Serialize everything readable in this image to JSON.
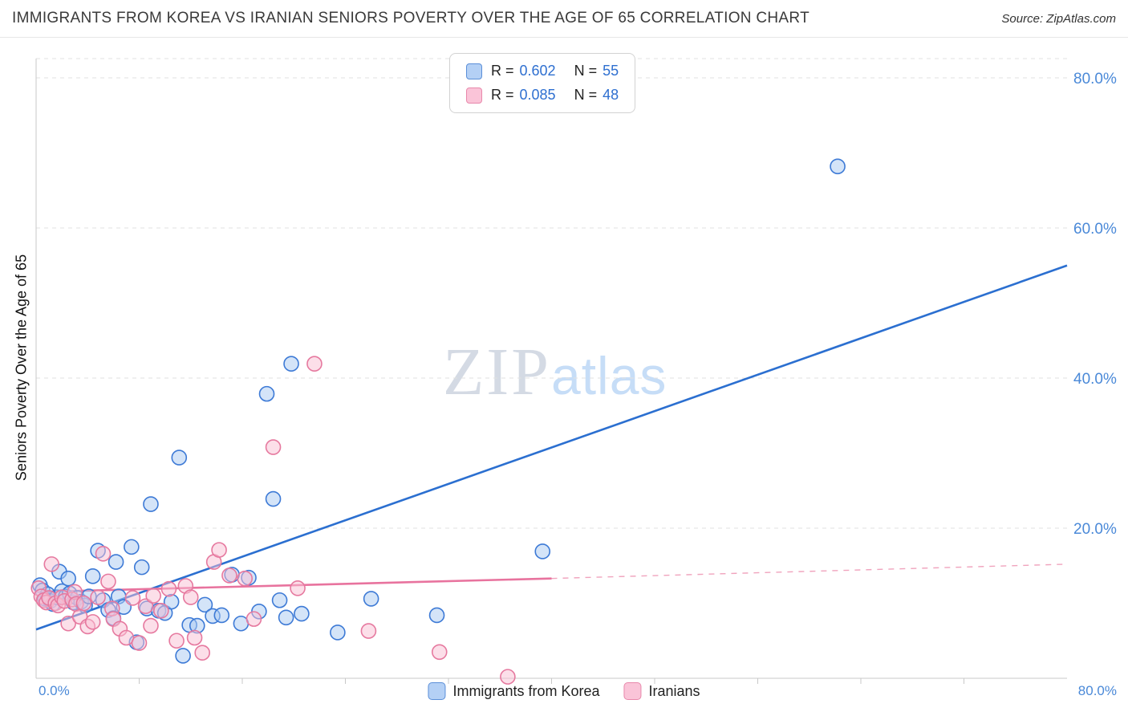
{
  "header": {
    "title": "IMMIGRANTS FROM KOREA VS IRANIAN SENIORS POVERTY OVER THE AGE OF 65 CORRELATION CHART",
    "source_prefix": "Source:",
    "source": "ZipAtlas.com"
  },
  "watermark": {
    "part1": "ZIP",
    "part2": "atlas"
  },
  "axes": {
    "y_title": "Seniors Poverty Over the Age of 65",
    "x_min_label": "0.0%",
    "x_max_label": "80.0%"
  },
  "stats_legend": {
    "rows": [
      {
        "series": "korea",
        "r_label": "R =",
        "r_value": "0.602",
        "n_label": "N =",
        "n_value": "55"
      },
      {
        "series": "iranians",
        "r_label": "R =",
        "r_value": "0.085",
        "n_label": "N =",
        "n_value": "48"
      }
    ]
  },
  "bottom_legend": [
    {
      "label": "Immigrants from Korea"
    },
    {
      "label": "Iranians"
    }
  ],
  "chart_data": {
    "type": "scatter",
    "title": "Immigrants from Korea vs Iranian Seniors Poverty Over the Age of 65",
    "xlabel": "",
    "ylabel": "Seniors Poverty Over the Age of 65",
    "xlim": [
      0,
      80
    ],
    "ylim": [
      0,
      80
    ],
    "grid": "horizontal-dashed",
    "legend_position": "bottom-center",
    "colors": {
      "grid": "#e1e1e1",
      "axis": "#c8c8c8",
      "tick_label": "#4a89d8"
    },
    "y_gridlines": [
      {
        "v": 80,
        "label": "80.0%"
      },
      {
        "v": 60,
        "label": "60.0%"
      },
      {
        "v": 40,
        "label": "40.0%"
      },
      {
        "v": 20,
        "label": "20.0%"
      }
    ],
    "series": [
      {
        "key": "korea",
        "name": "Immigrants from Korea",
        "R": 0.602,
        "N": 55,
        "point_fill": "#a9c9f2",
        "point_stroke": "#3d7ad6",
        "points": [
          [
            0.3,
            12.4
          ],
          [
            0.5,
            11.7
          ],
          [
            0.7,
            10.6
          ],
          [
            0.9,
            11.2
          ],
          [
            1.1,
            10.3
          ],
          [
            1.3,
            9.9
          ],
          [
            1.6,
            10.8
          ],
          [
            1.8,
            14.2
          ],
          [
            2.0,
            11.6
          ],
          [
            2.3,
            10.9
          ],
          [
            2.5,
            13.3
          ],
          [
            2.6,
            11.3
          ],
          [
            2.9,
            10.1
          ],
          [
            3.2,
            10.7
          ],
          [
            3.5,
            10.2
          ],
          [
            3.8,
            9.7
          ],
          [
            4.1,
            10.9
          ],
          [
            4.4,
            13.6
          ],
          [
            4.8,
            17.0
          ],
          [
            5.2,
            10.4
          ],
          [
            5.6,
            9.1
          ],
          [
            6.0,
            8.0
          ],
          [
            6.2,
            15.5
          ],
          [
            6.4,
            10.9
          ],
          [
            6.8,
            9.5
          ],
          [
            7.4,
            17.5
          ],
          [
            7.8,
            4.8
          ],
          [
            8.2,
            14.8
          ],
          [
            8.6,
            9.3
          ],
          [
            8.9,
            23.2
          ],
          [
            9.5,
            9.0
          ],
          [
            10.0,
            8.7
          ],
          [
            10.5,
            10.2
          ],
          [
            11.1,
            29.4
          ],
          [
            11.4,
            3.0
          ],
          [
            11.9,
            7.1
          ],
          [
            12.5,
            7.0
          ],
          [
            13.1,
            9.8
          ],
          [
            13.7,
            8.3
          ],
          [
            14.4,
            8.4
          ],
          [
            15.2,
            13.8
          ],
          [
            15.9,
            7.3
          ],
          [
            16.5,
            13.4
          ],
          [
            17.3,
            8.9
          ],
          [
            17.9,
            37.9
          ],
          [
            18.4,
            23.9
          ],
          [
            18.9,
            10.4
          ],
          [
            19.4,
            8.1
          ],
          [
            19.8,
            41.9
          ],
          [
            20.6,
            8.6
          ],
          [
            23.4,
            6.1
          ],
          [
            26.0,
            10.6
          ],
          [
            31.1,
            8.4
          ],
          [
            39.3,
            16.9
          ],
          [
            62.2,
            68.2
          ]
        ]
      },
      {
        "key": "iranians",
        "name": "Iranians",
        "R": 0.085,
        "N": 48,
        "point_fill": "#f9c0d4",
        "point_stroke": "#e6799f",
        "points": [
          [
            0.2,
            12.0
          ],
          [
            0.4,
            10.9
          ],
          [
            0.6,
            10.4
          ],
          [
            0.8,
            10.1
          ],
          [
            1.0,
            10.7
          ],
          [
            1.2,
            15.2
          ],
          [
            1.5,
            10.0
          ],
          [
            1.7,
            9.7
          ],
          [
            2.0,
            10.8
          ],
          [
            2.2,
            10.3
          ],
          [
            2.5,
            7.3
          ],
          [
            2.8,
            10.5
          ],
          [
            3.0,
            11.5
          ],
          [
            3.1,
            9.9
          ],
          [
            3.4,
            8.2
          ],
          [
            3.7,
            10.0
          ],
          [
            4.0,
            6.9
          ],
          [
            4.4,
            7.5
          ],
          [
            4.8,
            10.8
          ],
          [
            5.2,
            16.6
          ],
          [
            5.6,
            12.9
          ],
          [
            5.9,
            9.3
          ],
          [
            6.0,
            7.9
          ],
          [
            6.5,
            6.6
          ],
          [
            7.0,
            5.4
          ],
          [
            7.5,
            10.7
          ],
          [
            8.0,
            4.7
          ],
          [
            8.5,
            9.6
          ],
          [
            8.9,
            7.0
          ],
          [
            9.1,
            11.0
          ],
          [
            9.7,
            9.0
          ],
          [
            10.3,
            11.9
          ],
          [
            10.9,
            5.0
          ],
          [
            11.6,
            12.3
          ],
          [
            12.0,
            10.8
          ],
          [
            12.3,
            5.4
          ],
          [
            12.9,
            3.4
          ],
          [
            13.8,
            15.5
          ],
          [
            14.2,
            17.1
          ],
          [
            15.0,
            13.7
          ],
          [
            16.2,
            13.3
          ],
          [
            16.9,
            7.9
          ],
          [
            18.4,
            30.8
          ],
          [
            20.3,
            12.0
          ],
          [
            21.6,
            41.9
          ],
          [
            25.8,
            6.3
          ],
          [
            31.3,
            3.5
          ],
          [
            36.6,
            0.2
          ]
        ]
      }
    ],
    "trendlines": [
      {
        "series": "korea",
        "style": "solid",
        "color": "#2b6fd0",
        "x0": 0,
        "y0": 6.5,
        "x1": 80,
        "y1": 55.0
      },
      {
        "series": "iranians",
        "style": "solid",
        "color": "#e8739e",
        "x0": 0,
        "y0": 11.5,
        "x1": 40,
        "y1": 13.3
      },
      {
        "series": "iranians",
        "style": "dashed",
        "color": "#f0a3bd",
        "x0": 40,
        "y0": 13.3,
        "x1": 80,
        "y1": 15.2
      }
    ]
  }
}
